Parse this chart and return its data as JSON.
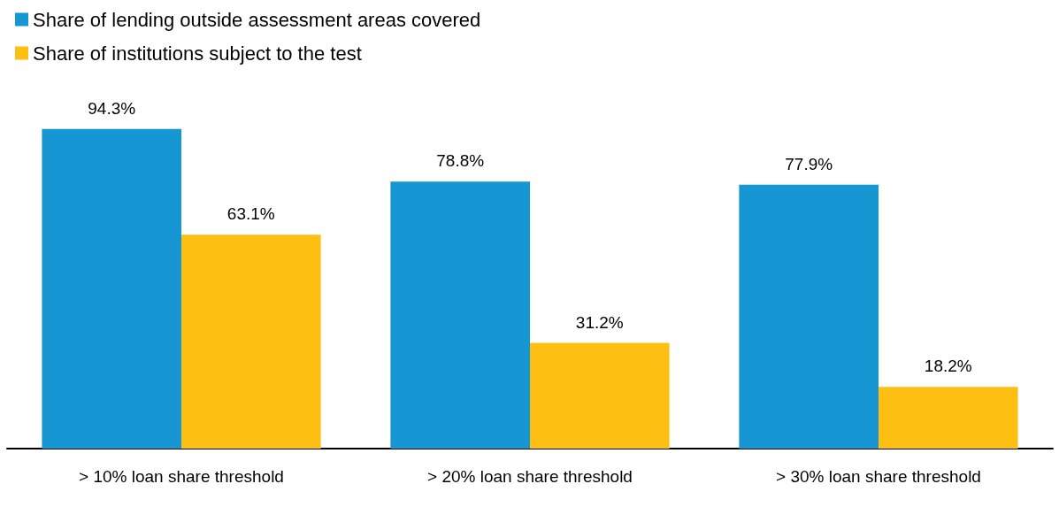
{
  "chart_data": {
    "type": "bar",
    "categories": [
      "> 10% loan share threshold",
      "> 20% loan share threshold",
      "> 30% loan share threshold"
    ],
    "series": [
      {
        "name": "Share of lending outside assessment areas covered",
        "color": "#1696d2",
        "values": [
          94.3,
          78.8,
          77.9
        ],
        "value_labels": [
          "94.3%",
          "78.8%",
          "77.9%"
        ]
      },
      {
        "name": "Share of institutions subject to the test",
        "color": "#fdbf11",
        "values": [
          63.1,
          31.2,
          18.2
        ],
        "value_labels": [
          "63.1%",
          "31.2%",
          "18.2%"
        ]
      }
    ],
    "legend": "top left"
  }
}
